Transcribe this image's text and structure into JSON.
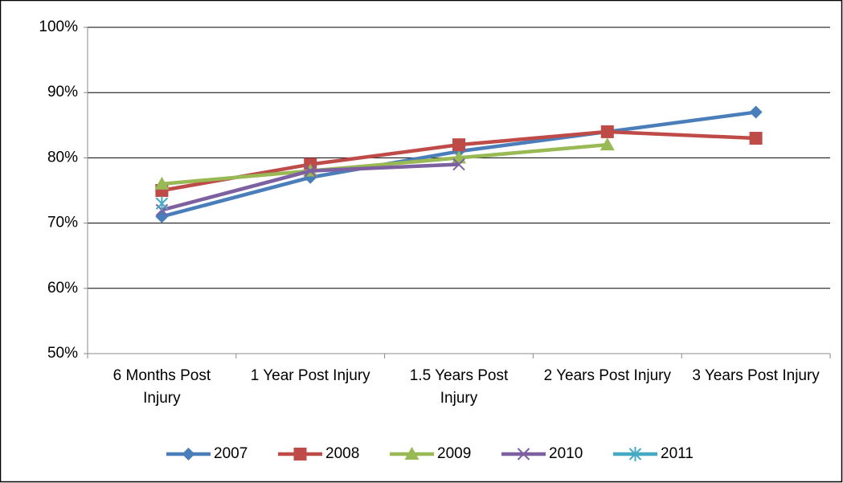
{
  "chart_data": {
    "type": "line",
    "categories": [
      "6 Months Post Injury",
      "1 Year Post Injury",
      "1.5 Years Post Injury",
      "2 Years Post Injury",
      "3 Years Post Injury"
    ],
    "series": [
      {
        "name": "2007",
        "color": "#4a7ebb",
        "marker": "diamond",
        "values": [
          71,
          77,
          81,
          84,
          87
        ]
      },
      {
        "name": "2008",
        "color": "#be4b48",
        "marker": "square",
        "values": [
          75,
          79,
          82,
          84,
          83
        ]
      },
      {
        "name": "2009",
        "color": "#98b954",
        "marker": "triangle",
        "values": [
          76,
          78,
          80,
          82,
          null
        ]
      },
      {
        "name": "2010",
        "color": "#7d60a0",
        "marker": "x",
        "values": [
          72,
          78,
          79,
          null,
          null
        ]
      },
      {
        "name": "2011",
        "color": "#46aac5",
        "marker": "asterisk",
        "values": [
          73,
          null,
          null,
          null,
          null
        ]
      }
    ],
    "ylim": [
      50,
      100
    ],
    "yticks": [
      {
        "value": 50,
        "label": "50%"
      },
      {
        "value": 60,
        "label": "60%"
      },
      {
        "value": 70,
        "label": "70%"
      },
      {
        "value": 80,
        "label": "80%"
      },
      {
        "value": 90,
        "label": "90%"
      },
      {
        "value": 100,
        "label": "100%"
      }
    ],
    "grid": true,
    "legend": "bottom"
  }
}
